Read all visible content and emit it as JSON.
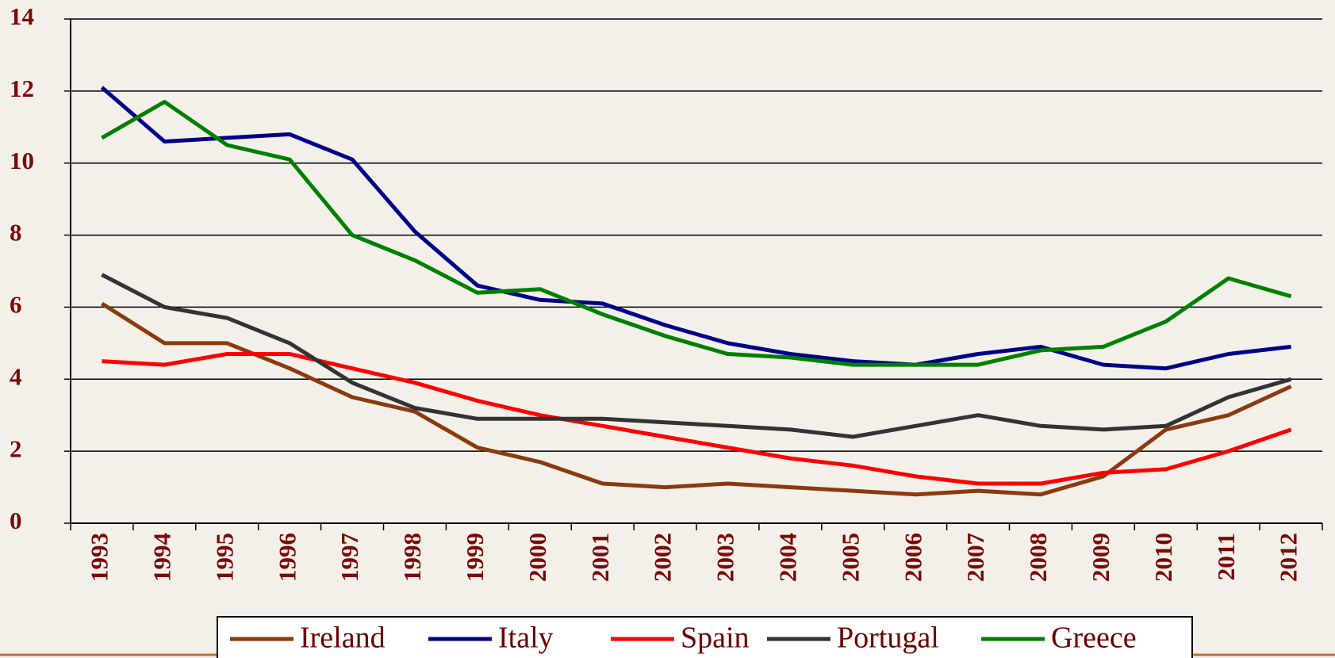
{
  "chart_data": {
    "type": "line",
    "categories": [
      "1993",
      "1994",
      "1995",
      "1996",
      "1997",
      "1998",
      "1999",
      "2000",
      "2001",
      "2002",
      "2003",
      "2004",
      "2005",
      "2006",
      "2007",
      "2008",
      "2009",
      "2010",
      "2011",
      "2012"
    ],
    "series": [
      {
        "name": "Ireland",
        "color": "#8b3a0f",
        "values": [
          6.1,
          5.0,
          5.0,
          4.3,
          3.5,
          3.1,
          2.1,
          1.7,
          1.1,
          1.0,
          1.1,
          1.0,
          0.9,
          0.8,
          0.9,
          0.8,
          1.3,
          2.6,
          3.0,
          3.8
        ]
      },
      {
        "name": "Italy",
        "color": "#00008b",
        "values": [
          12.1,
          10.6,
          10.7,
          10.8,
          10.1,
          8.1,
          6.6,
          6.2,
          6.1,
          5.5,
          5.0,
          4.7,
          4.5,
          4.4,
          4.7,
          4.9,
          4.4,
          4.3,
          4.7,
          4.9
        ]
      },
      {
        "name": "Spain",
        "color": "#ff0000",
        "values": [
          4.5,
          4.4,
          4.7,
          4.7,
          4.3,
          3.9,
          3.4,
          3.0,
          2.7,
          2.4,
          2.1,
          1.8,
          1.6,
          1.3,
          1.1,
          1.1,
          1.4,
          1.5,
          2.0,
          2.6
        ]
      },
      {
        "name": "Portugal",
        "color": "#333333",
        "values": [
          6.9,
          6.0,
          5.7,
          5.0,
          3.9,
          3.2,
          2.9,
          2.9,
          2.9,
          2.8,
          2.7,
          2.6,
          2.4,
          2.7,
          3.0,
          2.7,
          2.6,
          2.7,
          3.5,
          4.0
        ]
      },
      {
        "name": "Greece",
        "color": "#008000",
        "values": [
          10.7,
          11.7,
          10.5,
          10.1,
          8.0,
          7.3,
          6.4,
          6.5,
          5.8,
          5.2,
          4.7,
          4.6,
          4.4,
          4.4,
          4.4,
          4.8,
          4.9,
          5.6,
          6.8,
          6.3
        ]
      }
    ],
    "ylim": [
      0,
      14
    ],
    "yticks": [
      0,
      2,
      4,
      6,
      8,
      10,
      12,
      14
    ],
    "grid": true
  }
}
